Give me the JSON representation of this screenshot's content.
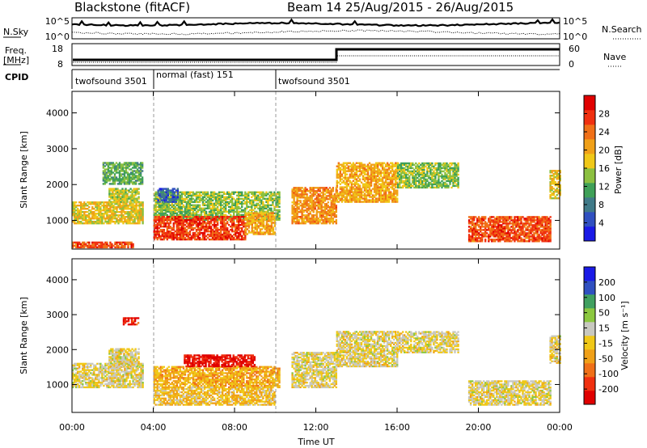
{
  "header": {
    "radar_title": "Blackstone (fitACF)",
    "beam_title": "Beam 14 25/Aug/2015 - 26/Aug/2015"
  },
  "noise_panel": {
    "left_label": "N.Sky",
    "right_label": "N.Search",
    "left_ticks": [
      "10^5",
      "10^0"
    ],
    "right_ticks": [
      "10^5",
      "10^0"
    ]
  },
  "freq_panel": {
    "left_label": "Freq.",
    "left_unit": "[MHz]",
    "right_label": "Nave",
    "left_ticks": [
      "18",
      "8"
    ],
    "right_ticks": [
      "60",
      "0"
    ]
  },
  "cpid": {
    "label": "CPID",
    "segments": [
      {
        "name": "twofsound 3501",
        "start": 0,
        "end": 4
      },
      {
        "name": "normal (fast) 151",
        "start": 4,
        "end": 10
      },
      {
        "name": "twofsound 3501",
        "start": 10,
        "end": 24
      }
    ]
  },
  "chart_data": [
    {
      "type": "heatmap",
      "parameter": "Power",
      "ylabel": "Slant Range [km]",
      "colorbar_label": "Power [dB]",
      "colorbar_ticks": [
        "28",
        "24",
        "20",
        "16",
        "12",
        "8",
        "4"
      ],
      "colorbar_range": [
        0,
        32
      ],
      "colors": [
        "#1a1ae6",
        "#3050c0",
        "#407a88",
        "#3fa058",
        "#8cc040",
        "#f0c818",
        "#f0a018",
        "#f07018",
        "#f03010",
        "#e00000"
      ],
      "yticks": [
        "1000",
        "2000",
        "3000",
        "4000"
      ],
      "yrange": [
        200,
        4600
      ],
      "xrange": [
        0,
        24
      ],
      "regions": [
        {
          "t0": 0,
          "t1": 3.5,
          "r0": 900,
          "r1": 1500,
          "level": 18
        },
        {
          "t0": 1.8,
          "t1": 3.3,
          "r0": 1500,
          "r1": 1900,
          "level": 16
        },
        {
          "t0": 1.5,
          "t1": 3.5,
          "r0": 2000,
          "r1": 2600,
          "level": 12
        },
        {
          "t0": 0,
          "t1": 3,
          "r0": 230,
          "r1": 400,
          "level": 26
        },
        {
          "t0": 4,
          "t1": 10.2,
          "r0": 1000,
          "r1": 1800,
          "level": 14
        },
        {
          "t0": 4,
          "t1": 8.5,
          "r0": 450,
          "r1": 1100,
          "level": 27
        },
        {
          "t0": 8.5,
          "t1": 10,
          "r0": 600,
          "r1": 1200,
          "level": 20
        },
        {
          "t0": 4.2,
          "t1": 5.2,
          "r0": 1500,
          "r1": 1900,
          "level": 6
        },
        {
          "t0": 10.8,
          "t1": 13,
          "r0": 900,
          "r1": 1900,
          "level": 22
        },
        {
          "t0": 13,
          "t1": 16,
          "r0": 1500,
          "r1": 2600,
          "level": 20
        },
        {
          "t0": 16,
          "t1": 19,
          "r0": 1900,
          "r1": 2600,
          "level": 14
        },
        {
          "t0": 19.5,
          "t1": 23.5,
          "r0": 400,
          "r1": 1100,
          "level": 26
        },
        {
          "t0": 23.5,
          "t1": 24,
          "r0": 1600,
          "r1": 2400,
          "level": 18
        }
      ]
    },
    {
      "type": "heatmap",
      "parameter": "Velocity",
      "ylabel": "Slant Range [km]",
      "colorbar_label": "Velocity [m s⁻¹]",
      "colorbar_ticks": [
        "200",
        "100",
        "50",
        "15",
        "-15",
        "-50",
        "-100",
        "-200"
      ],
      "colorbar_range": [
        -250,
        250
      ],
      "colors": [
        "#e00000",
        "#f03010",
        "#f07018",
        "#f0a018",
        "#f0c818",
        "#c8c8c0",
        "#8cc840",
        "#40a060",
        "#3050c0",
        "#1a1ae6"
      ],
      "yticks": [
        "1000",
        "2000",
        "3000",
        "4000"
      ],
      "yrange": [
        200,
        4600
      ],
      "xrange": [
        0,
        24
      ],
      "regions": [
        {
          "t0": 0,
          "t1": 3.5,
          "r0": 900,
          "r1": 1600,
          "level": 0
        },
        {
          "t0": 1.8,
          "t1": 3.3,
          "r0": 1500,
          "r1": 2000,
          "level": 0
        },
        {
          "t0": 4,
          "t1": 10.2,
          "r0": 900,
          "r1": 1500,
          "level": -60
        },
        {
          "t0": 5.5,
          "t1": 9,
          "r0": 1500,
          "r1": 1850,
          "level": -210
        },
        {
          "t0": 4,
          "t1": 10,
          "r0": 400,
          "r1": 900,
          "level": -40
        },
        {
          "t0": 2.5,
          "t1": 3.3,
          "r0": 2700,
          "r1": 2900,
          "level": -200
        },
        {
          "t0": 10.8,
          "t1": 13,
          "r0": 900,
          "r1": 1900,
          "level": 0
        },
        {
          "t0": 13,
          "t1": 16,
          "r0": 1500,
          "r1": 2500,
          "level": 0
        },
        {
          "t0": 16,
          "t1": 19,
          "r0": 1900,
          "r1": 2500,
          "level": 0
        },
        {
          "t0": 19.5,
          "t1": 23.5,
          "r0": 400,
          "r1": 1100,
          "level": 0
        },
        {
          "t0": 23.5,
          "t1": 24,
          "r0": 1600,
          "r1": 2400,
          "level": 0
        }
      ]
    }
  ],
  "xaxis": {
    "label": "Time UT",
    "ticks": [
      "00:00",
      "04:00",
      "08:00",
      "12:00",
      "16:00",
      "20:00",
      "00:00"
    ],
    "tick_hours": [
      0,
      4,
      8,
      12,
      16,
      20,
      24
    ]
  }
}
